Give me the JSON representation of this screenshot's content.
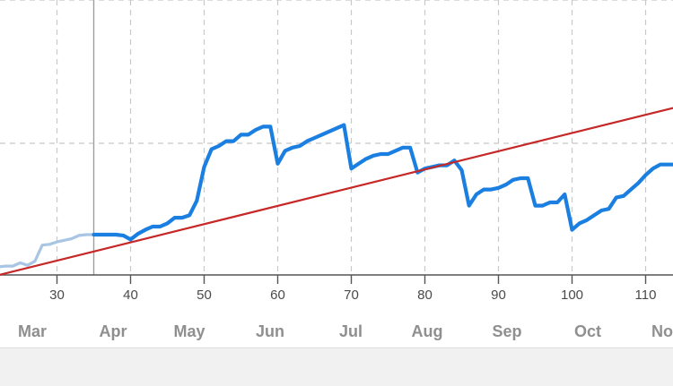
{
  "chart_data": {
    "type": "line",
    "x_ticks": [
      30,
      40,
      50,
      60,
      70,
      80,
      90,
      100,
      110
    ],
    "tick_labels": [
      "30",
      "40",
      "50",
      "60",
      "70",
      "80",
      "90",
      "100",
      "110"
    ],
    "months": [
      "Mar",
      "Apr",
      "May",
      "Jun",
      "Jul",
      "Aug",
      "Sep",
      "Oct",
      "Nov"
    ],
    "grid": "dashed",
    "marker_x": 35,
    "series": [
      {
        "color": "#a8c6e3",
        "x": [
          22,
          23,
          24,
          25,
          26,
          27,
          28,
          29,
          30,
          31,
          32,
          33,
          34,
          35
        ],
        "y": [
          0.5,
          0.55,
          0.55,
          0.75,
          0.6,
          0.85,
          1.85,
          1.9,
          2.05,
          2.15,
          2.25,
          2.45,
          2.5,
          2.5
        ]
      },
      {
        "color": "#1a7fe0",
        "x": [
          35,
          36,
          37,
          38,
          39,
          40,
          41,
          42,
          43,
          44,
          45,
          46,
          47,
          48,
          49,
          50,
          51,
          52,
          53,
          54,
          55,
          56,
          57,
          58,
          59,
          60,
          61,
          62,
          63,
          64,
          65,
          66,
          67,
          68,
          69,
          70,
          71,
          72,
          73,
          74,
          75,
          76,
          77,
          78,
          79,
          80,
          81,
          82,
          83,
          84,
          85,
          86,
          87,
          88,
          89,
          90,
          91,
          92,
          93,
          94,
          95,
          96,
          97,
          98,
          99,
          100,
          101,
          102,
          103,
          104,
          105,
          106,
          107,
          108,
          109,
          110,
          111,
          112,
          113,
          114
        ],
        "y": [
          2.5,
          2.5,
          2.5,
          2.5,
          2.45,
          2.2,
          2.55,
          2.8,
          3.0,
          3.0,
          3.2,
          3.55,
          3.55,
          3.7,
          4.6,
          6.7,
          7.8,
          8.0,
          8.3,
          8.3,
          8.7,
          8.7,
          9.0,
          9.2,
          9.2,
          6.9,
          7.7,
          7.9,
          8.0,
          8.3,
          8.5,
          8.7,
          8.9,
          9.1,
          9.3,
          6.6,
          6.9,
          7.2,
          7.4,
          7.5,
          7.5,
          7.7,
          7.9,
          7.9,
          6.35,
          6.6,
          6.7,
          6.8,
          6.8,
          7.1,
          6.5,
          4.3,
          5.0,
          5.3,
          5.3,
          5.4,
          5.6,
          5.9,
          6.0,
          6.0,
          4.3,
          4.3,
          4.5,
          4.5,
          5.0,
          2.8,
          3.2,
          3.4,
          3.7,
          4.0,
          4.1,
          4.8,
          4.9,
          5.3,
          5.7,
          6.2,
          6.6,
          6.85,
          6.85,
          6.85
        ]
      },
      {
        "color": "#c62828",
        "x": [
          0,
          115
        ],
        "y": [
          -2.5,
          10.5
        ]
      }
    ]
  }
}
